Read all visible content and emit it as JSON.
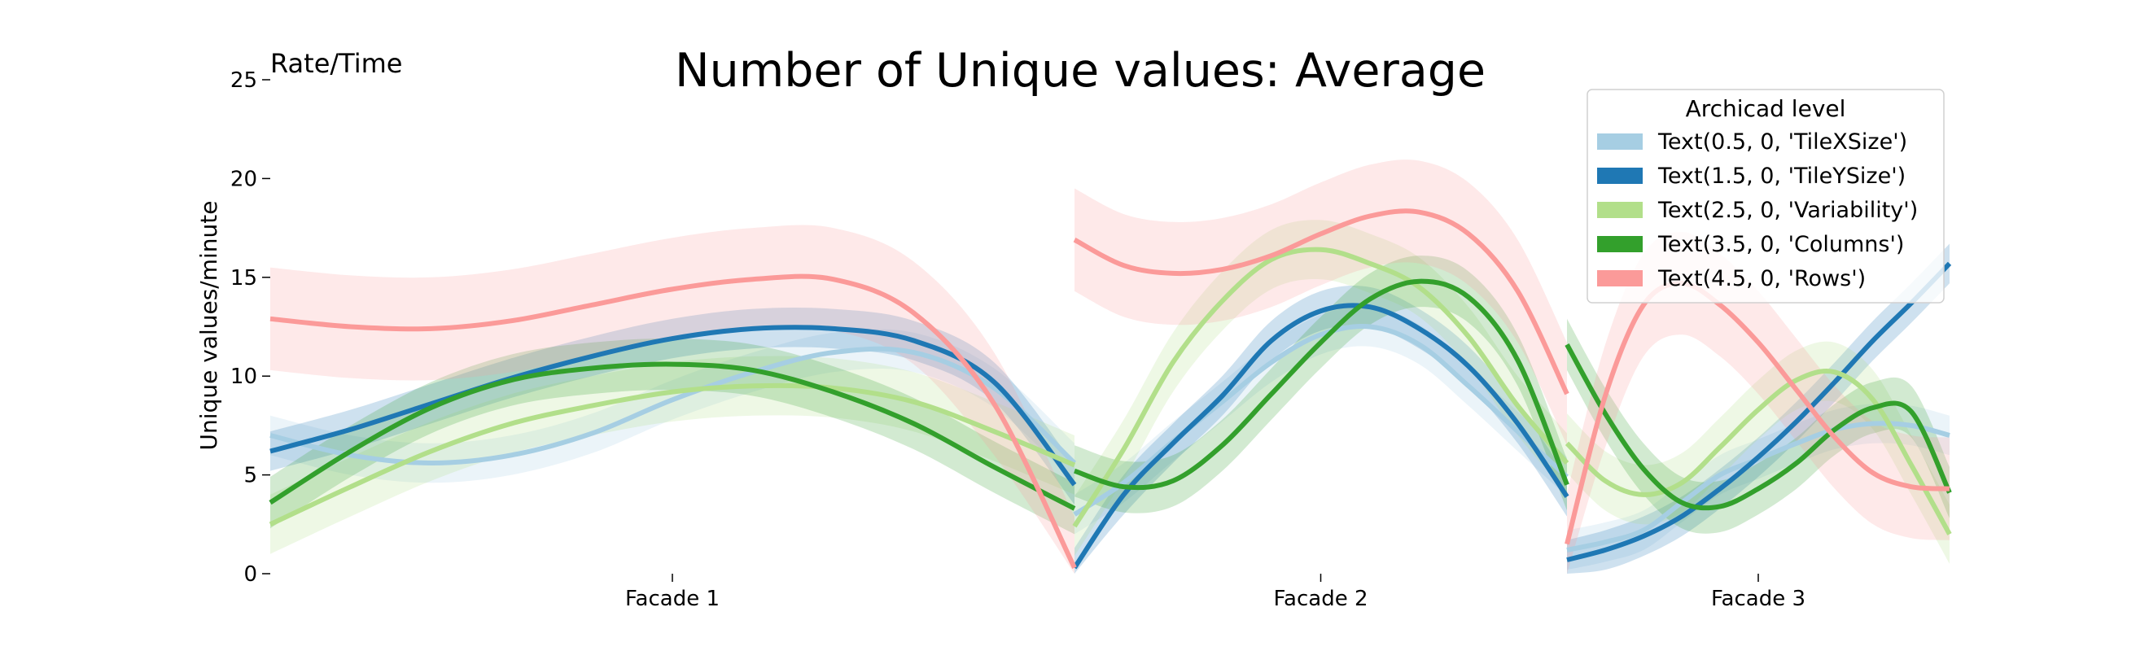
{
  "chart_data": {
    "type": "line",
    "title": "Number of Unique values: Average",
    "corner_label": "Rate/Time",
    "xlabel": "",
    "ylabel": "Unique values/minute",
    "ylim": [
      0,
      25
    ],
    "yticks": [
      0,
      5,
      10,
      15,
      20,
      25
    ],
    "grid": false,
    "legend": {
      "title": "Archicad level",
      "placement": "top-right"
    },
    "panels": [
      {
        "label": "Facade 1",
        "x": [
          0,
          0.1,
          0.2,
          0.3,
          0.4,
          0.5,
          0.6,
          0.7,
          0.8,
          0.9,
          1.0
        ]
      },
      {
        "label": "Facade 2",
        "x": [
          0,
          0.1,
          0.2,
          0.3,
          0.4,
          0.5,
          0.6,
          0.7,
          0.8,
          0.9,
          1.0
        ]
      },
      {
        "label": "Facade 3",
        "x": [
          0,
          0.1,
          0.2,
          0.3,
          0.4,
          0.5,
          0.6,
          0.7,
          0.8,
          0.9,
          1.0
        ]
      }
    ],
    "series": [
      {
        "name": "Text(0.5, 0, 'TileXSize')",
        "color": "#a6cee3",
        "band_width": 1.0,
        "values": [
          [
            7.0,
            6.0,
            5.6,
            6.0,
            7.1,
            8.8,
            10.2,
            11.2,
            11.2,
            9.4,
            5.6
          ],
          [
            3.0,
            4.6,
            6.7,
            8.7,
            10.7,
            12.1,
            12.5,
            11.6,
            9.5,
            7.2,
            4.9
          ],
          [
            1.2,
            1.6,
            2.2,
            3.6,
            5.0,
            5.8,
            6.6,
            7.3,
            7.6,
            7.5,
            7.0
          ]
        ]
      },
      {
        "name": "Text(1.5, 0, 'TileYSize')",
        "color": "#1f78b4",
        "band_width": 1.0,
        "values": [
          [
            6.2,
            7.3,
            8.6,
            9.9,
            11.0,
            11.9,
            12.4,
            12.4,
            11.8,
            9.7,
            4.5
          ],
          [
            0.3,
            4.0,
            6.6,
            9.0,
            11.8,
            13.3,
            13.5,
            12.4,
            10.5,
            7.6,
            3.9
          ],
          [
            0.7,
            1.2,
            1.9,
            2.9,
            4.3,
            5.9,
            7.7,
            9.7,
            11.8,
            13.7,
            15.7
          ]
        ]
      },
      {
        "name": "Text(2.5, 0, 'Variability')",
        "color": "#b2df8a",
        "band_width": 1.5,
        "values": [
          [
            2.5,
            4.4,
            6.2,
            7.6,
            8.5,
            9.2,
            9.5,
            9.4,
            8.7,
            7.2,
            5.5
          ],
          [
            2.4,
            6.3,
            10.7,
            13.8,
            15.9,
            16.4,
            15.7,
            14.5,
            12.0,
            8.5,
            5.6
          ],
          [
            6.6,
            4.7,
            4.0,
            4.6,
            6.4,
            8.3,
            9.8,
            10.2,
            8.8,
            5.5,
            2.0
          ]
        ]
      },
      {
        "name": "Text(3.5, 0, 'Columns')",
        "color": "#33a02c",
        "band_width": 1.3,
        "values": [
          [
            3.6,
            6.2,
            8.4,
            9.8,
            10.4,
            10.6,
            10.3,
            9.2,
            7.6,
            5.4,
            3.3
          ],
          [
            5.2,
            4.4,
            4.7,
            6.5,
            9.1,
            11.7,
            13.9,
            14.8,
            14.0,
            10.8,
            4.5
          ],
          [
            11.6,
            8.1,
            5.3,
            3.6,
            3.4,
            4.3,
            5.6,
            7.3,
            8.4,
            8.2,
            4.1
          ]
        ]
      },
      {
        "name": "Text(4.5, 0, 'Rows')",
        "color": "#fb9a99",
        "band_width": 2.6,
        "values": [
          [
            12.9,
            12.5,
            12.4,
            12.8,
            13.6,
            14.4,
            14.9,
            14.9,
            13.2,
            8.6,
            0.3
          ],
          [
            16.9,
            15.6,
            15.2,
            15.4,
            16.1,
            17.2,
            18.1,
            18.3,
            17.2,
            14.3,
            9.1
          ],
          [
            1.5,
            9.0,
            13.6,
            14.7,
            13.6,
            11.7,
            9.3,
            6.9,
            5.1,
            4.4,
            4.3
          ]
        ]
      }
    ]
  }
}
